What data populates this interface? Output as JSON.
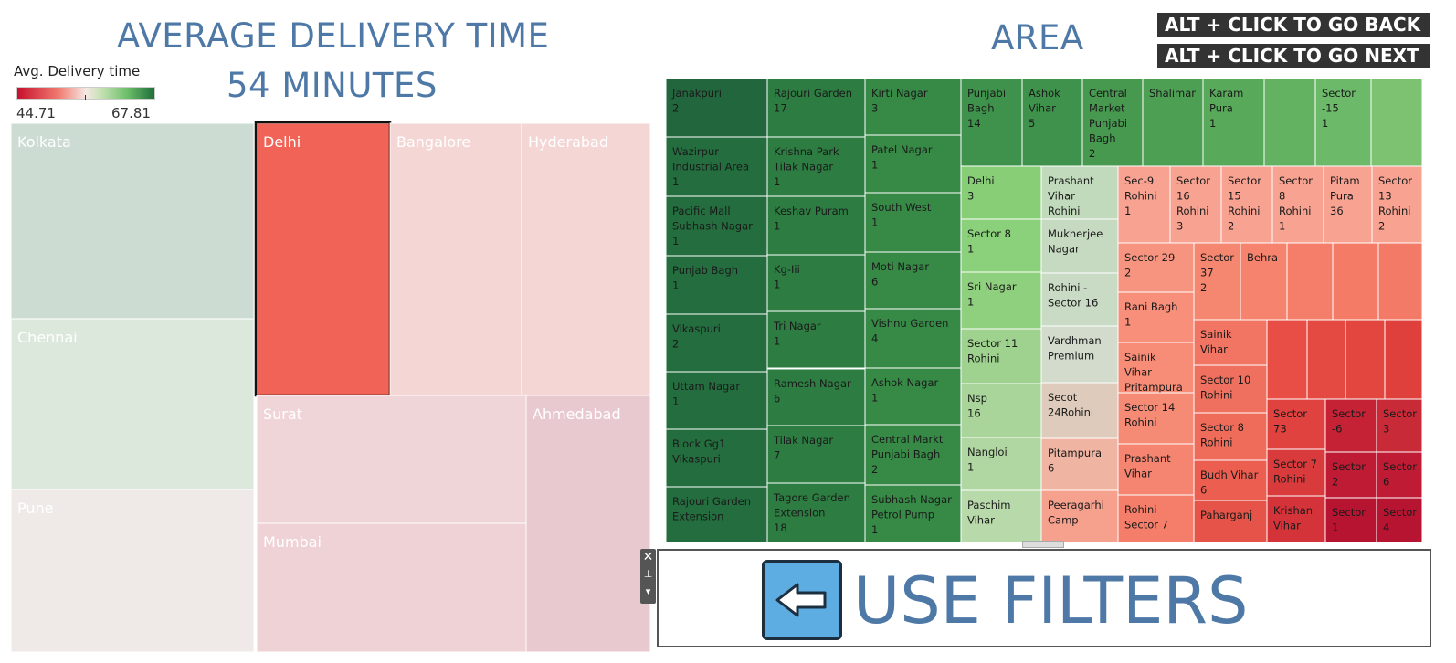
{
  "header": {
    "left_title_line1": "AVERAGE DELIVERY TIME",
    "left_title_line2": "54 MINUTES",
    "right_title": "AREA",
    "nav_back": "ALT + CLICK TO GO BACK",
    "nav_next": "ALT + CLICK TO GO NEXT"
  },
  "legend": {
    "title": "Avg. Delivery time",
    "min": "44.71",
    "max": "67.81",
    "low_color": "#c8102e",
    "high_color": "#1e6e3a"
  },
  "filter_panel": {
    "label": "USE FILTERS",
    "icon": "left-arrow-icon"
  },
  "chart_data": [
    {
      "type": "treemap",
      "measure": "Avg. Delivery time",
      "items": [
        {
          "name": "Kolkata",
          "color": "#ccdcd3"
        },
        {
          "name": "Chennai",
          "color": "#dde8dd"
        },
        {
          "name": "Pune",
          "color": "#efeae8"
        },
        {
          "name": "Delhi",
          "color": "#f06356",
          "selected": true
        },
        {
          "name": "Bangalore",
          "color": "#f4d6d5"
        },
        {
          "name": "Hyderabad",
          "color": "#f4d6d5"
        },
        {
          "name": "Surat",
          "color": "#efd5d8"
        },
        {
          "name": "Mumbai",
          "color": "#efd2d5"
        },
        {
          "name": "Ahmedabad",
          "color": "#e8c9cf"
        }
      ]
    },
    {
      "type": "treemap",
      "measure": "Avg. Delivery time",
      "items": [
        {
          "name": "Janakpuri",
          "value": "2",
          "color": "#21663c"
        },
        {
          "name": "Wazirpur Industrial Area",
          "value": "1",
          "color": "#236d3e"
        },
        {
          "name": "Pacific Mall Subhash Nagar",
          "value": "1",
          "color": "#236d3e"
        },
        {
          "name": "Punjab Bagh",
          "value": "1",
          "color": "#236d3e"
        },
        {
          "name": "Vikaspuri",
          "value": "2",
          "color": "#236d3e"
        },
        {
          "name": "Uttam Nagar",
          "value": "1",
          "color": "#236d3e"
        },
        {
          "name": "Block Gg1 Vikaspuri",
          "value": "",
          "color": "#236d3e"
        },
        {
          "name": "Rajouri Garden Extension",
          "value": "",
          "color": "#236d3e"
        },
        {
          "name": "Rajouri Garden",
          "value": "17",
          "color": "#2d7d42"
        },
        {
          "name": "Krishna Park Tilak Nagar",
          "value": "1",
          "color": "#2d7d42"
        },
        {
          "name": "Keshav Puram",
          "value": "1",
          "color": "#2d7d42"
        },
        {
          "name": "Kg-Iii",
          "value": "1",
          "color": "#2d7d42"
        },
        {
          "name": "Tri Nagar",
          "value": "1",
          "color": "#2d7d42"
        },
        {
          "name": "Ramesh Nagar",
          "value": "6",
          "color": "#2d7d42"
        },
        {
          "name": "Tilak Nagar",
          "value": "7",
          "color": "#2d7d42"
        },
        {
          "name": "Tagore Garden Extension",
          "value": "18",
          "color": "#2d7d42"
        },
        {
          "name": "Kirti Nagar",
          "value": "3",
          "color": "#368a46"
        },
        {
          "name": "Patel  Nagar",
          "value": "1",
          "color": "#368a46"
        },
        {
          "name": "South West",
          "value": "1",
          "color": "#368a46"
        },
        {
          "name": "Moti Nagar",
          "value": "6",
          "color": "#368a46"
        },
        {
          "name": "Vishnu Garden",
          "value": "4",
          "color": "#368a46"
        },
        {
          "name": "Ashok Nagar",
          "value": "1",
          "color": "#368a46"
        },
        {
          "name": "Central Markt Punjabi Bagh",
          "value": "2",
          "color": "#368a46"
        },
        {
          "name": "Subhash Nagar Petrol Pump",
          "value": "1",
          "color": "#368a46"
        },
        {
          "name": "Punjabi Bagh",
          "value": "14",
          "color": "#3f924b"
        },
        {
          "name": "Ashok Vihar",
          "value": "5",
          "color": "#3f924b"
        },
        {
          "name": "Central Market Punjabi Bagh",
          "value": "2",
          "color": "#47994f"
        },
        {
          "name": "Shalimar",
          "value": "",
          "color": "#4da053"
        },
        {
          "name": "Karam Pura",
          "value": "1",
          "color": "#58a95a"
        },
        {
          "name": "",
          "value": "",
          "color": "#63b262"
        },
        {
          "name": "Sector -15",
          "value": "1",
          "color": "#6cb96a"
        },
        {
          "name": "",
          "value": "",
          "color": "#7cc271"
        },
        {
          "name": "Delhi",
          "value": "3",
          "color": "#87ce76"
        },
        {
          "name": "Sector 8",
          "value": "1",
          "color": "#8bd07a"
        },
        {
          "name": "Sri Nagar",
          "value": "1",
          "color": "#8fd07e"
        },
        {
          "name": "Sector 11 Rohini",
          "value": "",
          "color": "#9ed28e"
        },
        {
          "name": "Nsp",
          "value": "16",
          "color": "#a9d59a"
        },
        {
          "name": "Nangloi",
          "value": "1",
          "color": "#b0d7a2"
        },
        {
          "name": "Paschim Vihar",
          "value": "",
          "color": "#b8daab"
        },
        {
          "name": "Prashant Vihar Rohini",
          "value": "",
          "color": "#c2dabc"
        },
        {
          "name": "Mukherjee Nagar",
          "value": "",
          "color": "#c6dac1"
        },
        {
          "name": "Rohini - Sector 16",
          "value": "",
          "color": "#cadbc5"
        },
        {
          "name": "Vardhman Premium",
          "value": "",
          "color": "#d2dbcc"
        },
        {
          "name": "Secot 24Rohini",
          "value": "",
          "color": "#dfcbbb"
        },
        {
          "name": "Pitampura",
          "value": "6",
          "color": "#f0b4a2"
        },
        {
          "name": "Peeragarhi Camp",
          "value": "",
          "color": "#f6a08e"
        },
        {
          "name": "Sec-9 Rohini",
          "value": "1",
          "color": "#f8a291"
        },
        {
          "name": "Sector 16 Rohini",
          "value": "3",
          "color": "#f8a291"
        },
        {
          "name": "Sector 15 Rohini",
          "value": "2",
          "color": "#f8a291"
        },
        {
          "name": "Sector 8 Rohini",
          "value": "1",
          "color": "#f8a291"
        },
        {
          "name": "Pitam Pura",
          "value": "36",
          "color": "#f8a291"
        },
        {
          "name": "Sector 13 Rohini",
          "value": "2",
          "color": "#f8a291"
        },
        {
          "name": "Sector 29",
          "value": "2",
          "color": "#f7947f"
        },
        {
          "name": "Rani Bagh",
          "value": "1",
          "color": "#f78f7b"
        },
        {
          "name": "Sainik Vihar Pritampura",
          "value": "",
          "color": "#f78c77"
        },
        {
          "name": "Sector 14 Rohini",
          "value": "",
          "color": "#f58a75"
        },
        {
          "name": "Prashant Vihar",
          "value": "",
          "color": "#f58470"
        },
        {
          "name": "Rohini Sector 7",
          "value": "",
          "color": "#f47e6a"
        },
        {
          "name": "Sector 37",
          "value": "2",
          "color": "#f58771"
        },
        {
          "name": "Behra",
          "value": "",
          "color": "#f5836d"
        },
        {
          "name": "",
          "value": "",
          "color": "#f47e69"
        },
        {
          "name": "",
          "value": "",
          "color": "#f47c67"
        },
        {
          "name": "",
          "value": "",
          "color": "#f27a66"
        },
        {
          "name": "Sainik Vihar",
          "value": "",
          "color": "#f27462"
        },
        {
          "name": "Sector 10 Rohini",
          "value": "",
          "color": "#f0705f"
        },
        {
          "name": "Sector 8 Rohini",
          "value": "",
          "color": "#ef6b5a"
        },
        {
          "name": "Budh Vihar",
          "value": "6",
          "color": "#ec5e50"
        },
        {
          "name": "Paharganj",
          "value": "",
          "color": "#e65449"
        },
        {
          "name": "",
          "value": "",
          "color": "#e84e45"
        },
        {
          "name": "",
          "value": "",
          "color": "#e54a42"
        },
        {
          "name": "",
          "value": "",
          "color": "#e2463f"
        },
        {
          "name": "",
          "value": "",
          "color": "#df403c"
        },
        {
          "name": "Sector 73",
          "value": "",
          "color": "#e04240"
        },
        {
          "name": "Sector 7 Rohini",
          "value": "",
          "color": "#d93a3b"
        },
        {
          "name": "Krishan Vihar",
          "value": "",
          "color": "#d43339"
        },
        {
          "name": "Sector -6",
          "value": "",
          "color": "#c52236"
        },
        {
          "name": "Sector 3",
          "value": "",
          "color": "#c92a37"
        },
        {
          "name": "Sector 2",
          "value": "",
          "color": "#bf1b34"
        },
        {
          "name": "Sector 6",
          "value": "",
          "color": "#bf1b34"
        },
        {
          "name": "Sector 1",
          "value": "",
          "color": "#b71432"
        },
        {
          "name": "Sector 4",
          "value": "",
          "color": "#b71432"
        }
      ]
    }
  ]
}
